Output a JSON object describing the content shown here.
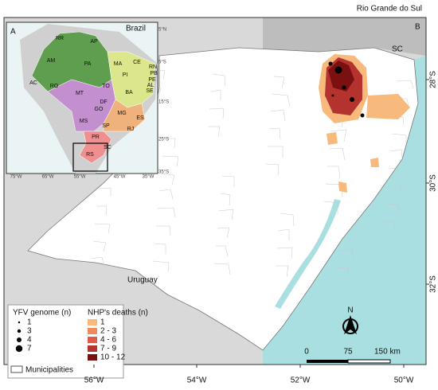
{
  "title": "Rio Grande do Sul",
  "inset": {
    "label": "A",
    "country": "Brazil",
    "states": [
      "RR",
      "AP",
      "AM",
      "PA",
      "MA",
      "CE",
      "RN",
      "PB",
      "PE",
      "AL",
      "SE",
      "PI",
      "AC",
      "RO",
      "TO",
      "BA",
      "MT",
      "DF",
      "GO",
      "MG",
      "ES",
      "MS",
      "SP",
      "RJ",
      "PR",
      "SC",
      "RS"
    ],
    "lat_ticks": [
      "5°N",
      "5°S",
      "15°S",
      "25°S",
      "35°S"
    ],
    "lon_ticks": [
      "75°W",
      "65°W",
      "55°W",
      "45°W",
      "35°W"
    ]
  },
  "main": {
    "label": "B",
    "neighbors": [
      "SC",
      "Uruguay"
    ],
    "lat_ticks": [
      "28°S",
      "30°S",
      "32°S"
    ],
    "lon_ticks": [
      "56°W",
      "54°W",
      "52°W",
      "50°W"
    ]
  },
  "legend": {
    "genome_title": "YFV genome (n)",
    "genome_classes": [
      "1",
      "3",
      "4",
      "7"
    ],
    "deaths_title": "NHP's deaths (n)",
    "death_classes": [
      "1",
      "2 - 3",
      "4 - 6",
      "7 - 9",
      "10 - 12"
    ],
    "municipalities": "Municipalities"
  },
  "scale": {
    "labels": [
      "0",
      "75",
      "150 km"
    ]
  },
  "north": "N"
}
